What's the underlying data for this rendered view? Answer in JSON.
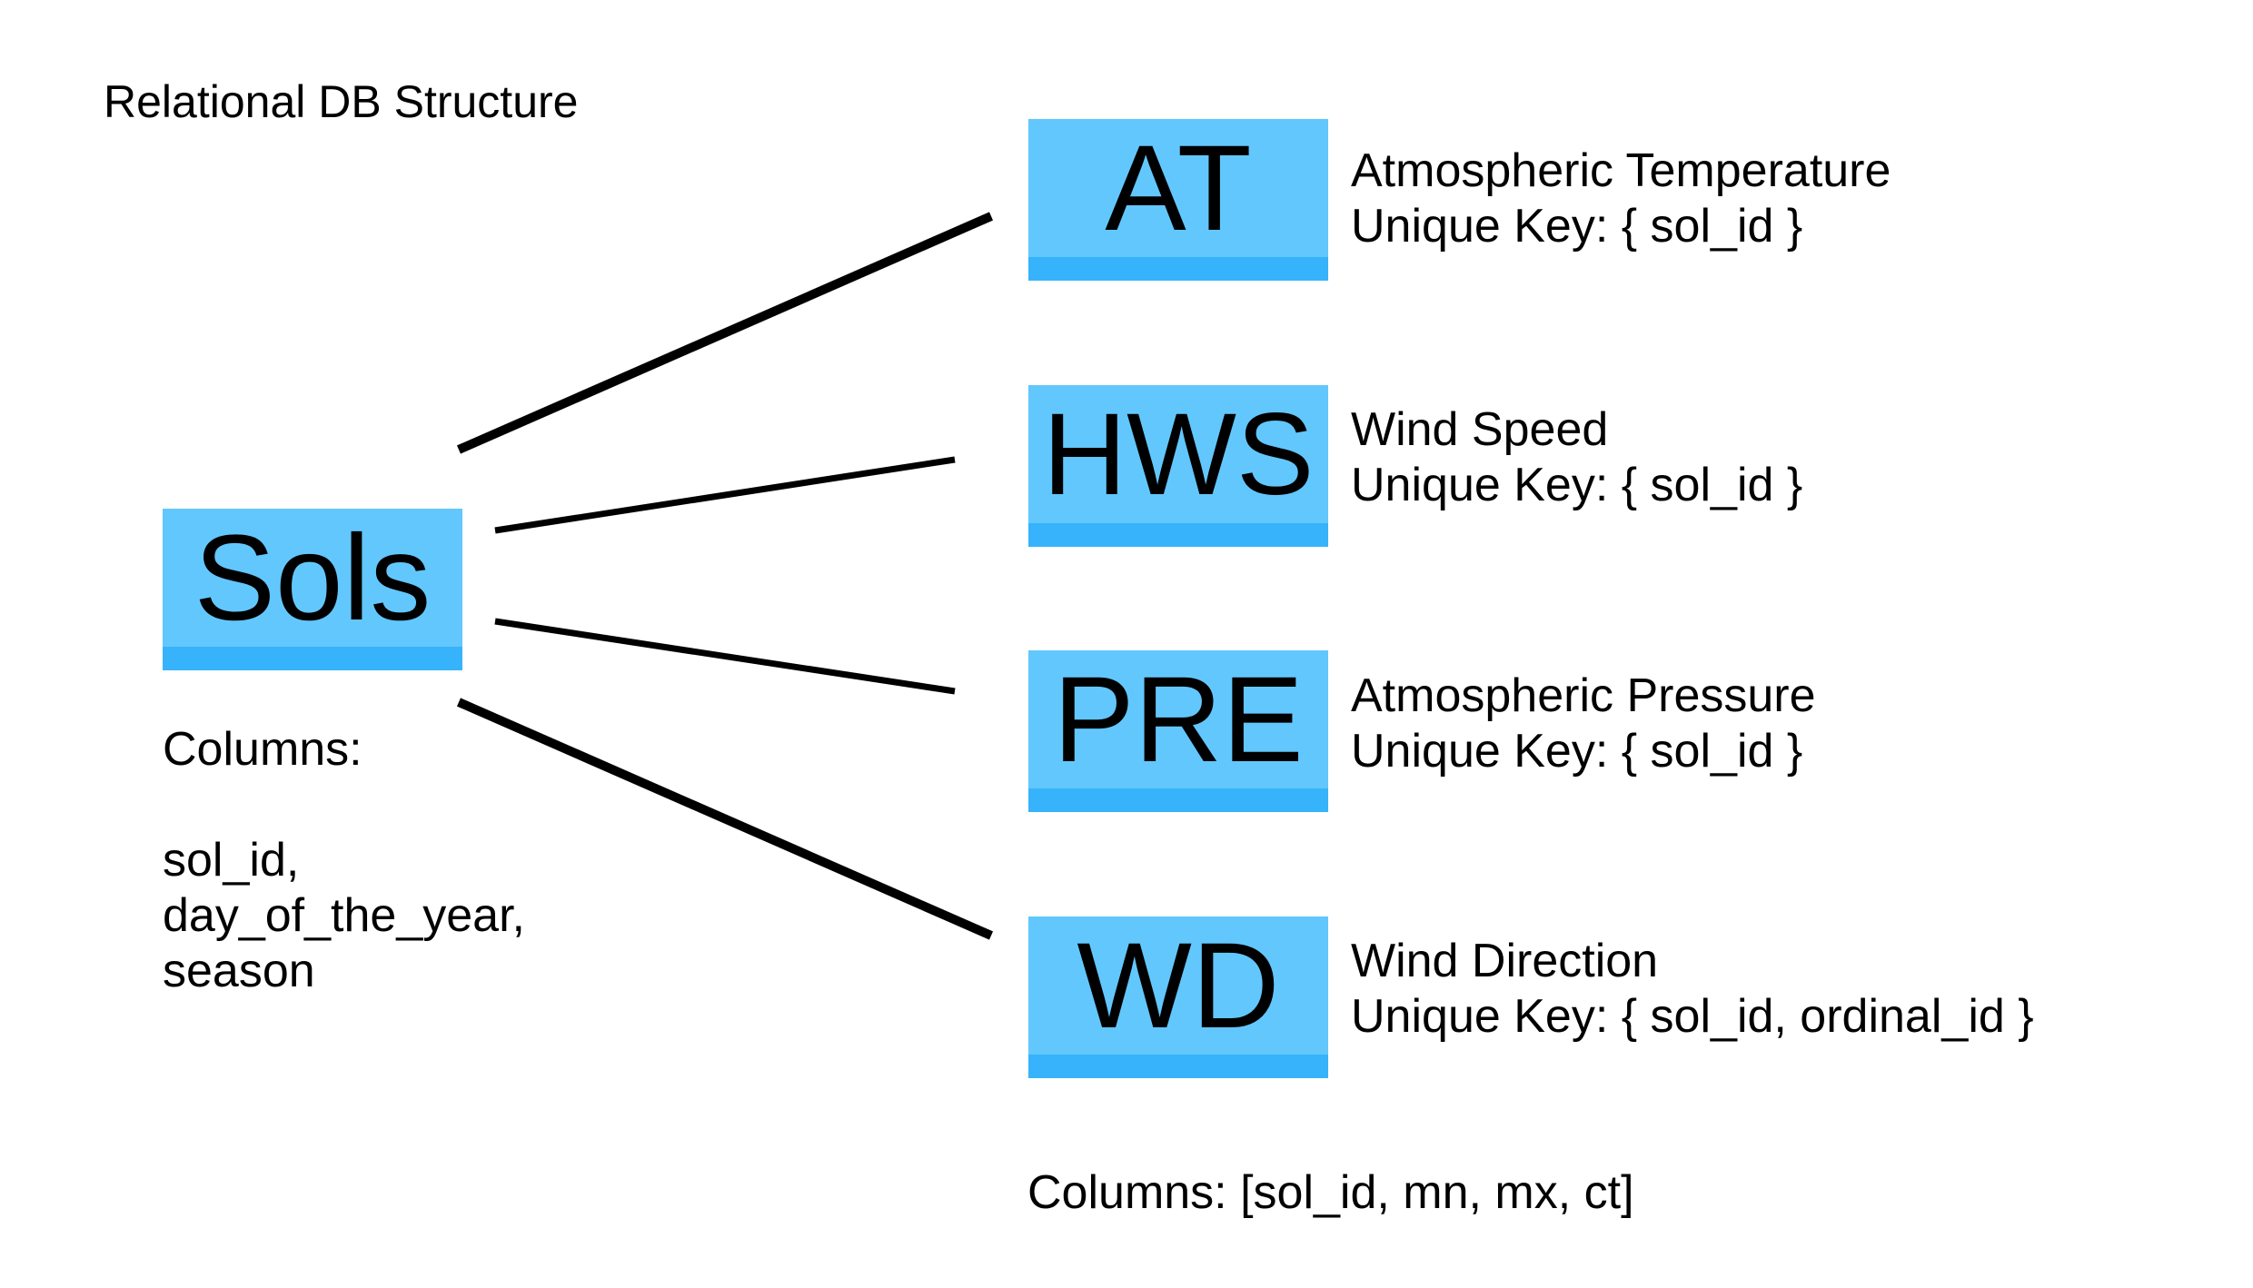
{
  "title": "Relational DB Structure",
  "colors": {
    "box_fill": "#62c7fd",
    "box_bar": "#36b3fa",
    "line": "#000000"
  },
  "parent_table": {
    "name": "Sols",
    "columns_label": "Columns:",
    "columns": [
      "sol_id,",
      "day_of_the_year,",
      "season"
    ]
  },
  "child_tables": [
    {
      "name": "AT",
      "description": "Atmospheric Temperature",
      "unique_key": "Unique Key: { sol_id }"
    },
    {
      "name": "HWS",
      "description": "Wind Speed",
      "unique_key": "Unique Key: { sol_id }"
    },
    {
      "name": "PRE",
      "description": "Atmospheric Pressure",
      "unique_key": "Unique Key: { sol_id }"
    },
    {
      "name": "WD",
      "description": "Wind Direction",
      "unique_key": "Unique Key: { sol_id, ordinal_id }"
    }
  ],
  "child_columns": "Columns: [sol_id, mn, mx, ct]",
  "relationships": [
    {
      "from": "Sols",
      "to": "AT"
    },
    {
      "from": "Sols",
      "to": "HWS"
    },
    {
      "from": "Sols",
      "to": "PRE"
    },
    {
      "from": "Sols",
      "to": "WD"
    }
  ]
}
